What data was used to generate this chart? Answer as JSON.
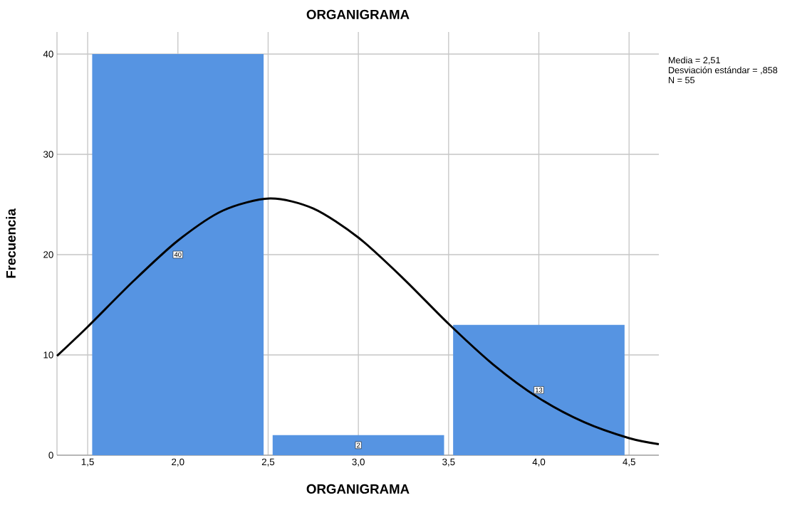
{
  "chart_data": {
    "type": "histogram",
    "title": "ORGANIGRAMA",
    "xlabel": "ORGANIGRAMA",
    "ylabel": "Frecuencia",
    "bins": [
      1.5,
      2.5,
      3.5,
      4.5
    ],
    "values": [
      40,
      2,
      13
    ],
    "color": "#5694e2",
    "value_labels": [
      "40",
      "2",
      "13"
    ],
    "series": [
      {
        "type": "line",
        "color": "#000000",
        "x": [
          1.33,
          1.5,
          1.75,
          2.0,
          2.25,
          2.51,
          2.75,
          3.0,
          3.25,
          3.5,
          3.75,
          4.0,
          4.25,
          4.5,
          4.665
        ],
        "values": [
          9.9,
          12.8,
          17.3,
          21.4,
          24.4,
          25.6,
          24.6,
          21.7,
          17.6,
          13.1,
          9.0,
          5.7,
          3.3,
          1.7,
          1.1
        ]
      }
    ],
    "xlim": [
      1.33,
      4.665
    ],
    "ylim": [
      0,
      42.2
    ],
    "xticks": [
      {
        "value": 1.5,
        "label": "1,5"
      },
      {
        "value": 2.0,
        "label": "2,0"
      },
      {
        "value": 2.5,
        "label": "2,5"
      },
      {
        "value": 3.0,
        "label": "3,0"
      },
      {
        "value": 3.5,
        "label": "3,5"
      },
      {
        "value": 4.0,
        "label": "4,0"
      },
      {
        "value": 4.5,
        "label": "4,5"
      }
    ],
    "yticks": [
      0,
      10,
      20,
      30,
      40
    ],
    "grid": true,
    "annotations": [
      "Media = 2,51",
      "Desviación estándar = ,858",
      "N = 55"
    ]
  }
}
